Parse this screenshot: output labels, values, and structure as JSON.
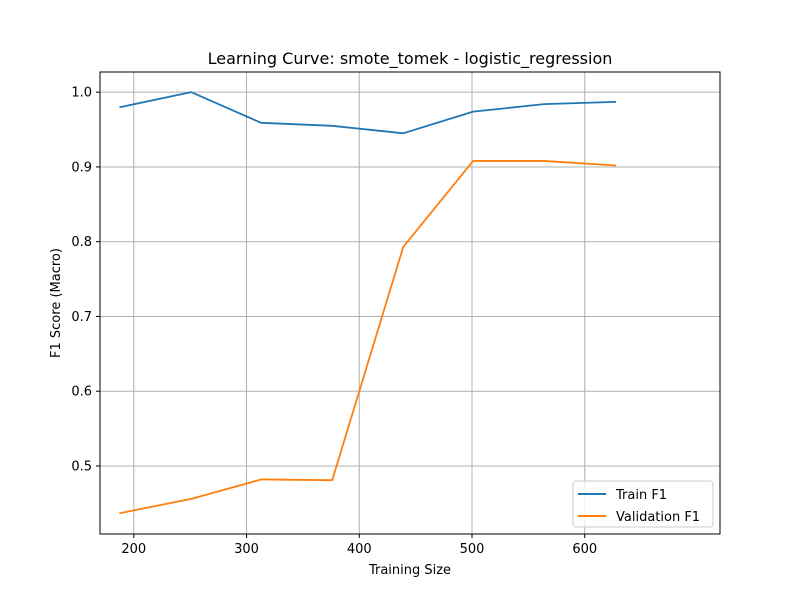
{
  "chart_data": {
    "type": "line",
    "title": "Learning Curve: smote_tomek - logistic_regression",
    "xlabel": "Training Size",
    "ylabel": "F1 Score (Macro)",
    "xlim": [
      170,
      720
    ],
    "ylim": [
      0.409,
      1.027
    ],
    "xticks": [
      200,
      300,
      400,
      500,
      600
    ],
    "yticks": [
      0.5,
      0.6,
      0.7,
      0.8,
      0.9,
      1.0
    ],
    "xtick_labels": [
      "200",
      "300",
      "400",
      "500",
      "600"
    ],
    "ytick_labels": [
      "0.5",
      "0.6",
      "0.7",
      "0.8",
      "0.9",
      "1.0"
    ],
    "grid": true,
    "legend_position": "lower-right",
    "x": [
      188,
      251,
      313,
      376,
      439,
      501,
      564,
      627
    ],
    "series": [
      {
        "name": "Train F1",
        "color": "#1f77b4",
        "values": [
          0.98,
          1.0,
          0.959,
          0.955,
          0.945,
          0.974,
          0.984,
          0.987
        ]
      },
      {
        "name": "Validation F1",
        "color": "#ff7f0e",
        "values": [
          0.437,
          0.456,
          0.482,
          0.481,
          0.793,
          0.908,
          0.908,
          0.902
        ]
      }
    ]
  }
}
